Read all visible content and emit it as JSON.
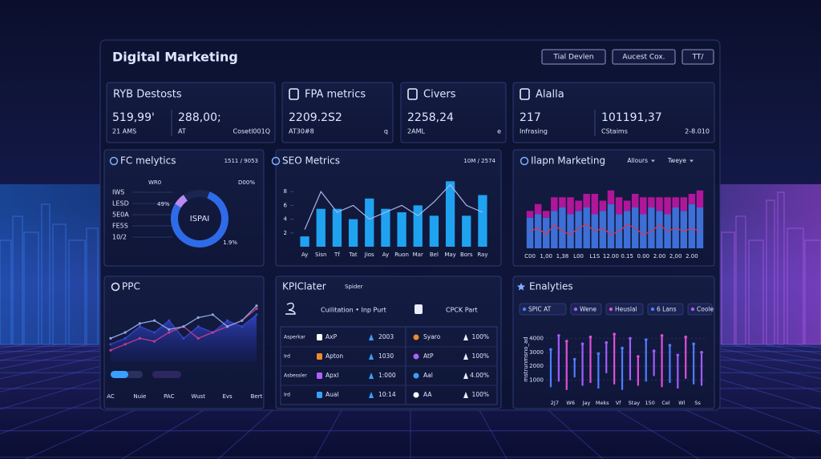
{
  "header": {
    "title": "Digital Marketing",
    "buttons": [
      "Tial Devlen",
      "Aucest Cox.",
      "TT/"
    ]
  },
  "cards": [
    {
      "title": "RYB Destosts",
      "items": [
        {
          "value": "519,99'",
          "label": "21 AMS"
        },
        {
          "value": "288,00;",
          "label": "AT"
        }
      ],
      "note": "Cosetl001Q"
    },
    {
      "title": "FPA metrics",
      "items": [
        {
          "value": "2209.2S2",
          "label": "AT30#8"
        }
      ],
      "note": "q"
    },
    {
      "title": "Civers",
      "items": [
        {
          "value": "2258,24",
          "label": "2AML"
        }
      ],
      "note": "e"
    },
    {
      "title": "Alalla",
      "items": [
        {
          "value": "217",
          "label": "Infrasing"
        },
        {
          "value": "101191,37",
          "label": "CStaims"
        }
      ],
      "note": "2-8.010"
    }
  ],
  "kpi_table": {
    "title": "KPIClater",
    "tag": "Spider",
    "left_heading": "Cuilitation • Inp Purt",
    "right_heading": "CPCK Part",
    "rows": [
      [
        "Asperkar",
        "AxP",
        "2003",
        "Syaro",
        "100%"
      ],
      [
        "Ird",
        "Apton",
        "1030",
        "AtP",
        "100%"
      ],
      [
        "Asbessler",
        "Apxl",
        "1:000",
        "Aal",
        "4.00%"
      ],
      [
        "Ird",
        "Aual",
        "10:14",
        "AA",
        "100%"
      ]
    ]
  },
  "chart_data": [
    {
      "type": "pie",
      "title": "FC melytics",
      "subtitle": "1511 / 9053",
      "center_label": "ISPAI",
      "values": [
        78,
        7,
        15
      ],
      "colors": [
        "#2f6be8",
        "#b98af2",
        "#1a2550"
      ],
      "side_labels": [
        "IWS",
        "LESD",
        "5E0A",
        "FE5S",
        "10/2"
      ],
      "annotations": [
        "WR0",
        "D00%",
        "49%",
        "1.9%"
      ]
    },
    {
      "type": "bar",
      "title": "SEO Metrics",
      "subtitle": "10M / 2574",
      "categories": [
        "Ay",
        "Sisn",
        "Tf",
        "Tat",
        "Jios",
        "Ay",
        "Ruon",
        "Mar",
        "Bel",
        "May",
        "Bors",
        "Ray"
      ],
      "series": [
        {
          "color": "#1fa3f0",
          "values": [
            1.5,
            5.5,
            5.5,
            4,
            7,
            5.5,
            5,
            6,
            4.5,
            9.5,
            4.5,
            7.5
          ]
        },
        {
          "kind": "line",
          "color": "#a9b8e8",
          "values": [
            2.5,
            8,
            5,
            6,
            4,
            5,
            6,
            4.5,
            6.5,
            9,
            6,
            5
          ]
        }
      ],
      "ylim": [
        0,
        10
      ],
      "yticks": [
        2,
        4,
        6,
        8
      ]
    },
    {
      "type": "bar",
      "stacked": true,
      "title": "Ilapn Marketing",
      "dropdowns": [
        "Allours",
        "Tweye"
      ],
      "categories": [
        "C00",
        null,
        "1,00",
        null,
        "1,38",
        null,
        "L00",
        null,
        "L1S",
        null,
        "12.00",
        null,
        "0.15",
        null,
        "0.00",
        null,
        "2.00",
        null,
        "2,00",
        null,
        "2.00",
        null
      ],
      "series": [
        {
          "color": "#3d6fd6",
          "values": [
            4.5,
            5,
            4.5,
            5.5,
            6,
            5,
            5.5,
            6,
            5,
            5.5,
            6.5,
            5,
            5.5,
            6,
            5,
            6,
            5.5,
            5,
            6,
            5.5,
            6.5,
            6
          ]
        },
        {
          "color": "#b0169a",
          "values": [
            1,
            1.5,
            1,
            2,
            1.5,
            2.5,
            1.5,
            2,
            3,
            1.5,
            2,
            2.5,
            1.5,
            2,
            2.5,
            1.5,
            2,
            2.5,
            1.5,
            2,
            1.5,
            2.5
          ]
        },
        {
          "kind": "line",
          "color": "#e0354f",
          "values": [
            2.5,
            3,
            2,
            3.5,
            2.5,
            2,
            3,
            3.5,
            2.5,
            3,
            2,
            2.5,
            3.5,
            3,
            2,
            2.5,
            3.5,
            2.5,
            3,
            2.5,
            3,
            2.5
          ]
        }
      ],
      "ylim": [
        0,
        10
      ]
    },
    {
      "type": "area",
      "title": "PPC",
      "categories": [
        "AC",
        null,
        "Nuie",
        null,
        "PAC",
        null,
        "Wust",
        null,
        "Evs",
        null,
        "Bert"
      ],
      "series": [
        {
          "fill": true,
          "color": "#3346c8",
          "values": [
            3,
            4,
            6,
            5,
            7,
            4,
            6,
            5,
            7,
            6,
            8
          ]
        },
        {
          "color": "#c33a92",
          "values": [
            2,
            3,
            4,
            3.5,
            5,
            6,
            4,
            5,
            6,
            7,
            9
          ]
        },
        {
          "color": "#8fa6e0",
          "values": [
            4,
            5,
            6.5,
            7,
            5.5,
            6,
            7.5,
            8,
            6,
            7,
            9.5
          ]
        }
      ],
      "ylim": [
        0,
        10
      ]
    },
    {
      "type": "range",
      "title": "Enalyties",
      "filters": [
        "SPIC AT",
        "Wene",
        "Heuslal",
        "6 Lans",
        "Coole"
      ],
      "ylabel": "mstrunmsno_ad",
      "categories": [
        "2J7",
        null,
        "W6",
        null,
        "Jay",
        null,
        "Meks",
        null,
        "Vf",
        null,
        "Stay",
        null,
        "150",
        null,
        "Cel",
        null,
        "Wl",
        null,
        "Ss",
        null
      ],
      "low": [
        500,
        900,
        300,
        1200,
        600,
        800,
        400,
        1500,
        700,
        300,
        1000,
        600,
        900,
        1300,
        500,
        800,
        400,
        1100,
        700,
        600
      ],
      "high": [
        3200,
        4200,
        3800,
        2500,
        3600,
        4100,
        2900,
        3700,
        4300,
        3300,
        4000,
        2700,
        3900,
        3100,
        4200,
        3500,
        2800,
        4100,
        3600,
        3000
      ],
      "colors": [
        "#4f7dff",
        "#a45cff",
        "#e14fd8"
      ],
      "ylim": [
        0,
        5000
      ],
      "yticks": [
        1000,
        2000,
        3000,
        4000
      ]
    }
  ]
}
